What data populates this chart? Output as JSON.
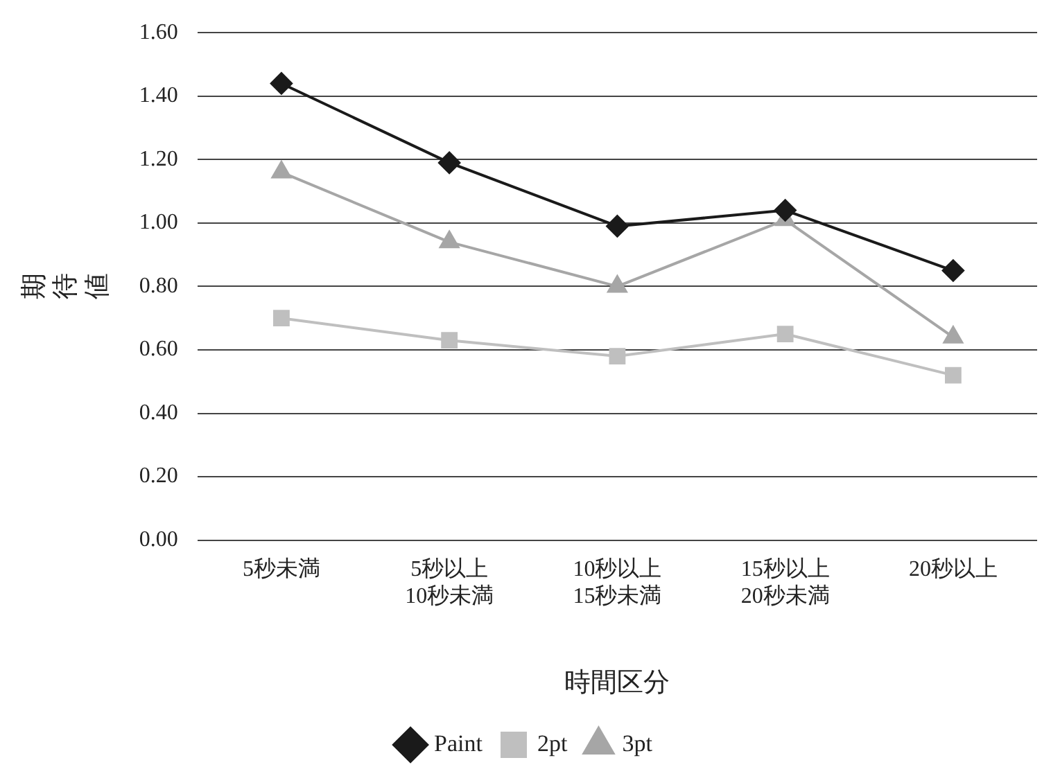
{
  "chart_data": {
    "type": "line",
    "xlabel": "時間区分",
    "ylabel": "期待値",
    "categories": [
      "5秒未満",
      "5秒以上\n10秒未満",
      "10秒以上\n15秒未満",
      "15秒以上\n20秒未満",
      "20秒以上"
    ],
    "series": [
      {
        "name": "Paint",
        "color": "#1a1a1a",
        "marker": "diamond",
        "values": [
          1.44,
          1.19,
          0.99,
          1.04,
          0.85
        ]
      },
      {
        "name": "2pt",
        "color": "#bfbfbf",
        "marker": "square",
        "values": [
          0.7,
          0.63,
          0.58,
          0.65,
          0.52
        ]
      },
      {
        "name": "3pt",
        "color": "#a6a6a6",
        "marker": "triangle",
        "values": [
          1.16,
          0.94,
          0.8,
          1.01,
          0.64
        ]
      }
    ],
    "ylim": [
      0,
      1.6
    ],
    "yticks": [
      {
        "value": 0,
        "label": "0.00"
      },
      {
        "value": 0.2,
        "label": "0.20"
      },
      {
        "value": 0.4,
        "label": "0.40"
      },
      {
        "value": 0.6,
        "label": "0.60"
      },
      {
        "value": 0.8,
        "label": "0.80"
      },
      {
        "value": 1,
        "label": "1.00"
      },
      {
        "value": 1.2,
        "label": "1.20"
      },
      {
        "value": 1.4,
        "label": "1.40"
      },
      {
        "value": 1.6,
        "label": "1.60"
      }
    ],
    "grid": "y",
    "legend": "bottom",
    "line_style": "solid"
  }
}
